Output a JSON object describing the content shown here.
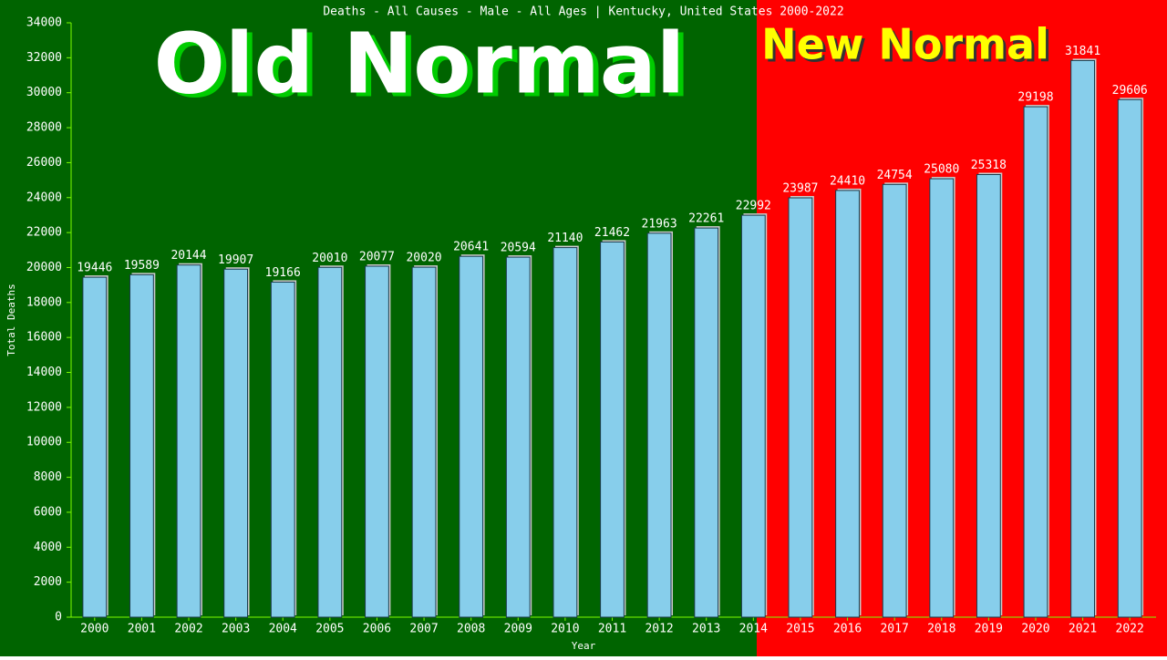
{
  "chart_data": {
    "type": "bar",
    "title": "Deaths - All Causes - Male - All Ages | Kentucky, United States 2000-2022",
    "xlabel": "Year",
    "ylabel": "Total Deaths",
    "annotations": [
      "Old Normal",
      "New Normal"
    ],
    "categories": [
      "2000",
      "2001",
      "2002",
      "2003",
      "2004",
      "2005",
      "2006",
      "2007",
      "2008",
      "2009",
      "2010",
      "2011",
      "2012",
      "2013",
      "2014",
      "2015",
      "2016",
      "2017",
      "2018",
      "2019",
      "2020",
      "2021",
      "2022"
    ],
    "values": [
      19446,
      19589,
      20144,
      19907,
      19166,
      20010,
      20077,
      20020,
      20641,
      20594,
      21140,
      21462,
      21963,
      22261,
      22992,
      23987,
      24410,
      24754,
      25080,
      25318,
      29198,
      31841,
      29606
    ],
    "color": "#87ceeb",
    "ylim": [
      0,
      34000
    ],
    "yticks": [
      0,
      2000,
      4000,
      6000,
      8000,
      10000,
      12000,
      14000,
      16000,
      18000,
      20000,
      22000,
      24000,
      26000,
      28000,
      30000,
      32000,
      34000
    ],
    "grid": false
  }
}
